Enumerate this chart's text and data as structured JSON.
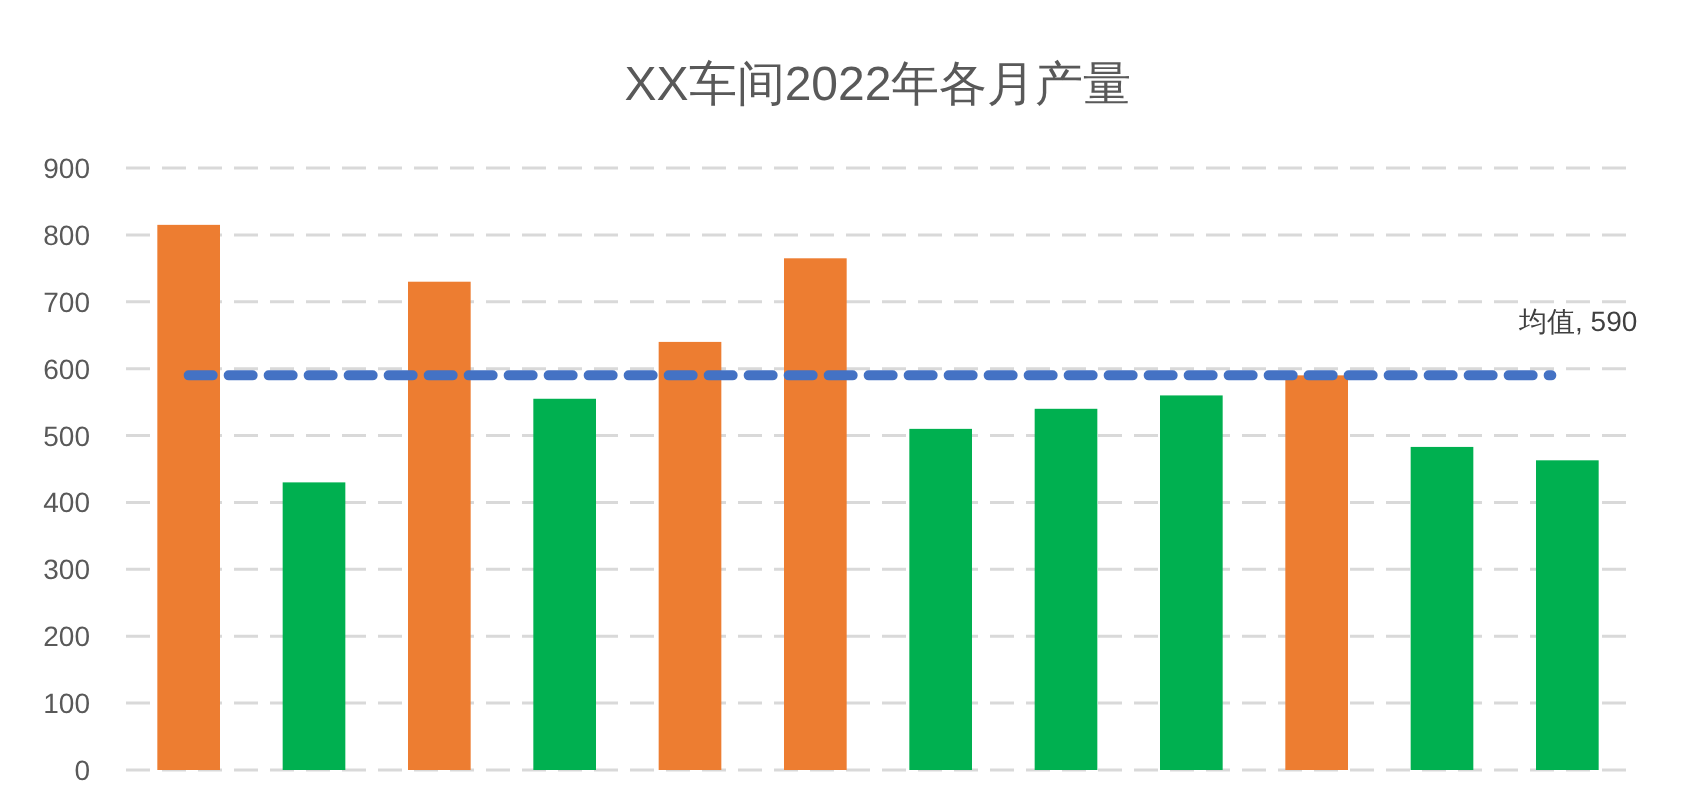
{
  "chart_data": {
    "type": "bar",
    "title": "XX车间2022年各月产量",
    "categories": [
      null,
      null,
      null,
      null,
      null,
      null,
      null,
      null,
      null,
      null,
      null,
      null
    ],
    "values": [
      815,
      430,
      730,
      555,
      640,
      765,
      510,
      540,
      560,
      590,
      483,
      463
    ],
    "colors": [
      "#ed7d31",
      "#00b050",
      "#ed7d31",
      "#00b050",
      "#ed7d31",
      "#ed7d31",
      "#00b050",
      "#00b050",
      "#00b050",
      "#ed7d31",
      "#00b050",
      "#00b050"
    ],
    "ylim": [
      0,
      900
    ],
    "yticks": [
      0,
      100,
      200,
      300,
      400,
      500,
      600,
      700,
      800,
      900
    ],
    "grid": "y",
    "tick_labels": "y",
    "ref_lines": [
      {
        "axis": "y",
        "value": 590,
        "label": "均值, 590",
        "color": "#4472c4",
        "line_style": "dashed"
      }
    ]
  }
}
